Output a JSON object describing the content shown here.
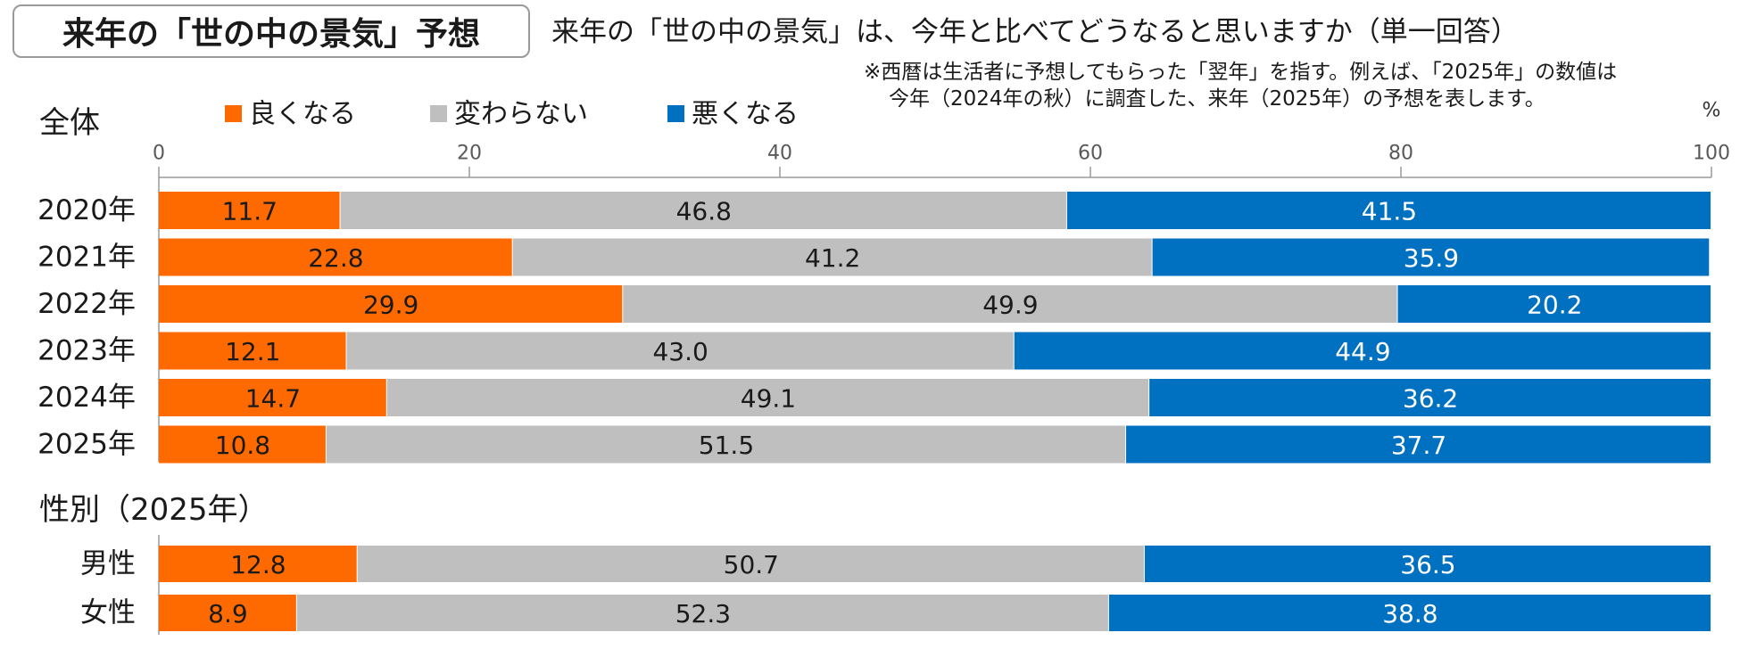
{
  "title": "来年の「世の中の景気」予想",
  "question": "来年の「世の中の景気」は、今年と比べてどうなると思いますか（単一回答）",
  "note": {
    "line1": "※西暦は生活者に予想してもらった「翌年」を指す。例えば、「2025年」の数値は",
    "line2": "今年（2024年の秋）に調査した、来年（2025年）の予想を表します。"
  },
  "colors": {
    "good": "#ff6a00",
    "same": "#bfbfbf",
    "bad": "#0070c0",
    "axis": "#9a9a9a"
  },
  "chart_data": {
    "type": "bar",
    "orientation": "horizontal",
    "stacked": true,
    "unit": "%",
    "xlim": [
      0,
      100
    ],
    "xticks": [
      0,
      20,
      40,
      60,
      80,
      100
    ],
    "legend": [
      {
        "key": "good",
        "label": "良くなる"
      },
      {
        "key": "same",
        "label": "変わらない"
      },
      {
        "key": "bad",
        "label": "悪くなる"
      }
    ],
    "groups": [
      {
        "label": "全体",
        "categories": [
          "2020年",
          "2021年",
          "2022年",
          "2023年",
          "2024年",
          "2025年"
        ],
        "series": [
          {
            "name": "良くなる",
            "key": "good",
            "values": [
              11.7,
              22.8,
              29.9,
              12.1,
              14.7,
              10.8
            ]
          },
          {
            "name": "変わらない",
            "key": "same",
            "values": [
              46.8,
              41.2,
              49.9,
              43.0,
              49.1,
              51.5
            ]
          },
          {
            "name": "悪くなる",
            "key": "bad",
            "values": [
              41.5,
              35.9,
              20.2,
              44.9,
              36.2,
              37.7
            ]
          }
        ]
      },
      {
        "label": "性別（2025年）",
        "categories": [
          "男性",
          "女性"
        ],
        "series": [
          {
            "name": "良くなる",
            "key": "good",
            "values": [
              12.8,
              8.9
            ]
          },
          {
            "name": "変わらない",
            "key": "same",
            "values": [
              50.7,
              52.3
            ]
          },
          {
            "name": "悪くなる",
            "key": "bad",
            "values": [
              36.5,
              38.8
            ]
          }
        ]
      }
    ]
  }
}
